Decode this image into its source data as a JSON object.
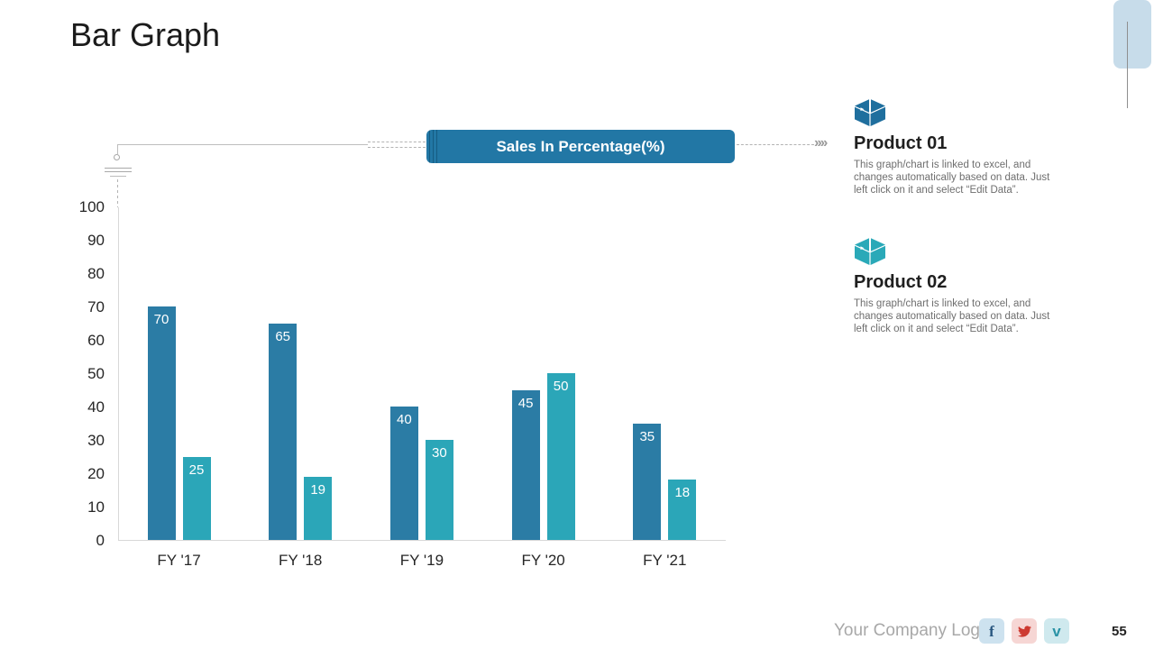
{
  "slide": {
    "title": "Bar Graph",
    "page_number": "55"
  },
  "callout": {
    "label": "Sales In Percentage(%)",
    "chevrons": "››››"
  },
  "products": [
    {
      "title": "Product 01",
      "description": "This graph/chart is linked to excel, and changes automatically based on data. Just left click on it and select “Edit Data”.",
      "icon": "box-icon",
      "color": "#1f6f9e"
    },
    {
      "title": "Product 02",
      "description": "This graph/chart is linked to excel, and changes automatically based on data. Just left click on it and select “Edit Data”.",
      "icon": "box-icon",
      "color": "#2aa9b8"
    }
  ],
  "footer": {
    "logo_text": "Your Company Logo",
    "social": [
      {
        "name": "facebook-icon",
        "glyph": "f"
      },
      {
        "name": "twitter-icon",
        "glyph": ""
      },
      {
        "name": "vimeo-icon",
        "glyph": "v"
      }
    ],
    "page_number": "55"
  },
  "colors": {
    "series1": "#2b7ca5",
    "series2": "#2ba6b8",
    "badge": "#2277a5",
    "accent_rect": "#c7dcea"
  },
  "chart_data": {
    "type": "bar",
    "categories": [
      "FY '17",
      "FY '18",
      "FY '19",
      "FY '20",
      "FY '21"
    ],
    "series": [
      {
        "name": "Product 01",
        "color": "#2b7ca5",
        "values": [
          70,
          65,
          40,
          45,
          35
        ]
      },
      {
        "name": "Product 02",
        "color": "#2ba6b8",
        "values": [
          25,
          19,
          30,
          50,
          18
        ]
      }
    ],
    "title": "Sales In Percentage(%)",
    "xlabel": "",
    "ylabel": "",
    "ylim": [
      0,
      100
    ],
    "ytick_step": 10,
    "grid": false,
    "legend_position": "none",
    "value_labels": "inside-top"
  }
}
